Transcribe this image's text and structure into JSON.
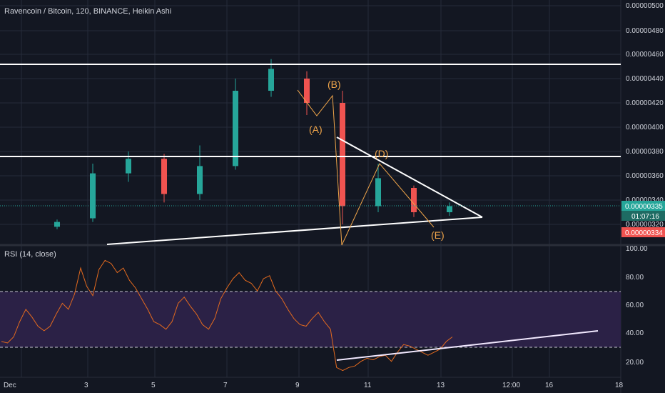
{
  "header": {
    "title": "Ravencoin / Bitcoin, 120, BINANCE, Heikin Ashi"
  },
  "price_axis": {
    "ticks": [
      "0.00000500",
      "0.00000480",
      "0.00000460",
      "0.00000440",
      "0.00000420",
      "0.00000400",
      "0.00000380",
      "0.00000360",
      "0.00000340",
      "0.00000320"
    ],
    "last_price": "0.00000335",
    "countdown": "01:07:16",
    "bid_price": "0.00000334",
    "partial_label": "0"
  },
  "time_axis": {
    "labels": [
      "Dec",
      "3",
      "5",
      "7",
      "9",
      "11",
      "13",
      "12:00",
      "16",
      "18"
    ]
  },
  "wave_labels": {
    "a": "(A)",
    "b": "(B)",
    "d": "(D)",
    "e": "(E)"
  },
  "rsi": {
    "title": "RSI (14, close)",
    "ticks": [
      "100.00",
      "80.00",
      "60.00",
      "40.00",
      "20.00"
    ],
    "upper_band": 70,
    "lower_band": 30
  },
  "colors": {
    "background": "#131722",
    "up": "#26a69a",
    "down": "#ef5350",
    "wave": "#f0a54a",
    "rsi_line": "#e46a1e",
    "rsi_band": "#2b2146",
    "trendline": "#ffffff"
  },
  "chart_data": {
    "type": "candlestick",
    "symbol": "RVN/BTC",
    "interval": "120",
    "y_range": [
      3.2e-06,
      5e-06
    ],
    "horizontal_levels": [
      4.52e-06,
      3.76e-06
    ],
    "candles": [
      {
        "x": "Dec 2",
        "o": 3.18e-06,
        "c": 3.22e-06,
        "h": 3.24e-06,
        "l": 3.16e-06
      },
      {
        "x": "Dec 3",
        "o": 3.25e-06,
        "c": 3.62e-06,
        "h": 3.7e-06,
        "l": 3.22e-06
      },
      {
        "x": "Dec 4",
        "o": 3.62e-06,
        "c": 3.74e-06,
        "h": 3.8e-06,
        "l": 3.55e-06
      },
      {
        "x": "Dec 5",
        "o": 3.74e-06,
        "c": 3.45e-06,
        "h": 3.78e-06,
        "l": 3.38e-06
      },
      {
        "x": "Dec 6",
        "o": 3.45e-06,
        "c": 3.68e-06,
        "h": 3.85e-06,
        "l": 3.4e-06
      },
      {
        "x": "Dec 7",
        "o": 3.68e-06,
        "c": 4.3e-06,
        "h": 4.4e-06,
        "l": 3.65e-06
      },
      {
        "x": "Dec 8",
        "o": 4.3e-06,
        "c": 4.48e-06,
        "h": 4.56e-06,
        "l": 4.25e-06
      },
      {
        "x": "Dec 9",
        "o": 4.4e-06,
        "c": 4.2e-06,
        "h": 4.46e-06,
        "l": 4.1e-06
      },
      {
        "x": "Dec 10",
        "o": 4.2e-06,
        "c": 3.35e-06,
        "h": 4.3e-06,
        "l": 3.2e-06
      },
      {
        "x": "Dec 11",
        "o": 3.35e-06,
        "c": 3.58e-06,
        "h": 3.7e-06,
        "l": 3.3e-06
      },
      {
        "x": "Dec 12",
        "o": 3.5e-06,
        "c": 3.3e-06,
        "h": 3.52e-06,
        "l": 3.26e-06
      },
      {
        "x": "Dec 13",
        "o": 3.3e-06,
        "c": 3.35e-06,
        "h": 3.38e-06,
        "l": 3.27e-06
      }
    ],
    "rsi": {
      "y_range": [
        15,
        100
      ],
      "values": [
        37,
        36,
        40,
        50,
        58,
        53,
        47,
        44,
        47,
        55,
        62,
        58,
        68,
        85,
        73,
        67,
        84,
        90,
        88,
        82,
        85,
        77,
        72,
        65,
        58,
        50,
        48,
        45,
        50,
        62,
        66,
        60,
        55,
        48,
        45,
        52,
        65,
        72,
        78,
        82,
        77,
        75,
        70,
        78,
        80,
        70,
        65,
        58,
        52,
        48,
        47,
        52,
        56,
        50,
        45,
        20,
        18,
        20,
        21,
        24,
        26,
        25,
        27,
        28,
        24,
        30,
        35,
        34,
        32,
        30,
        28,
        30,
        32,
        37,
        40
      ]
    }
  }
}
